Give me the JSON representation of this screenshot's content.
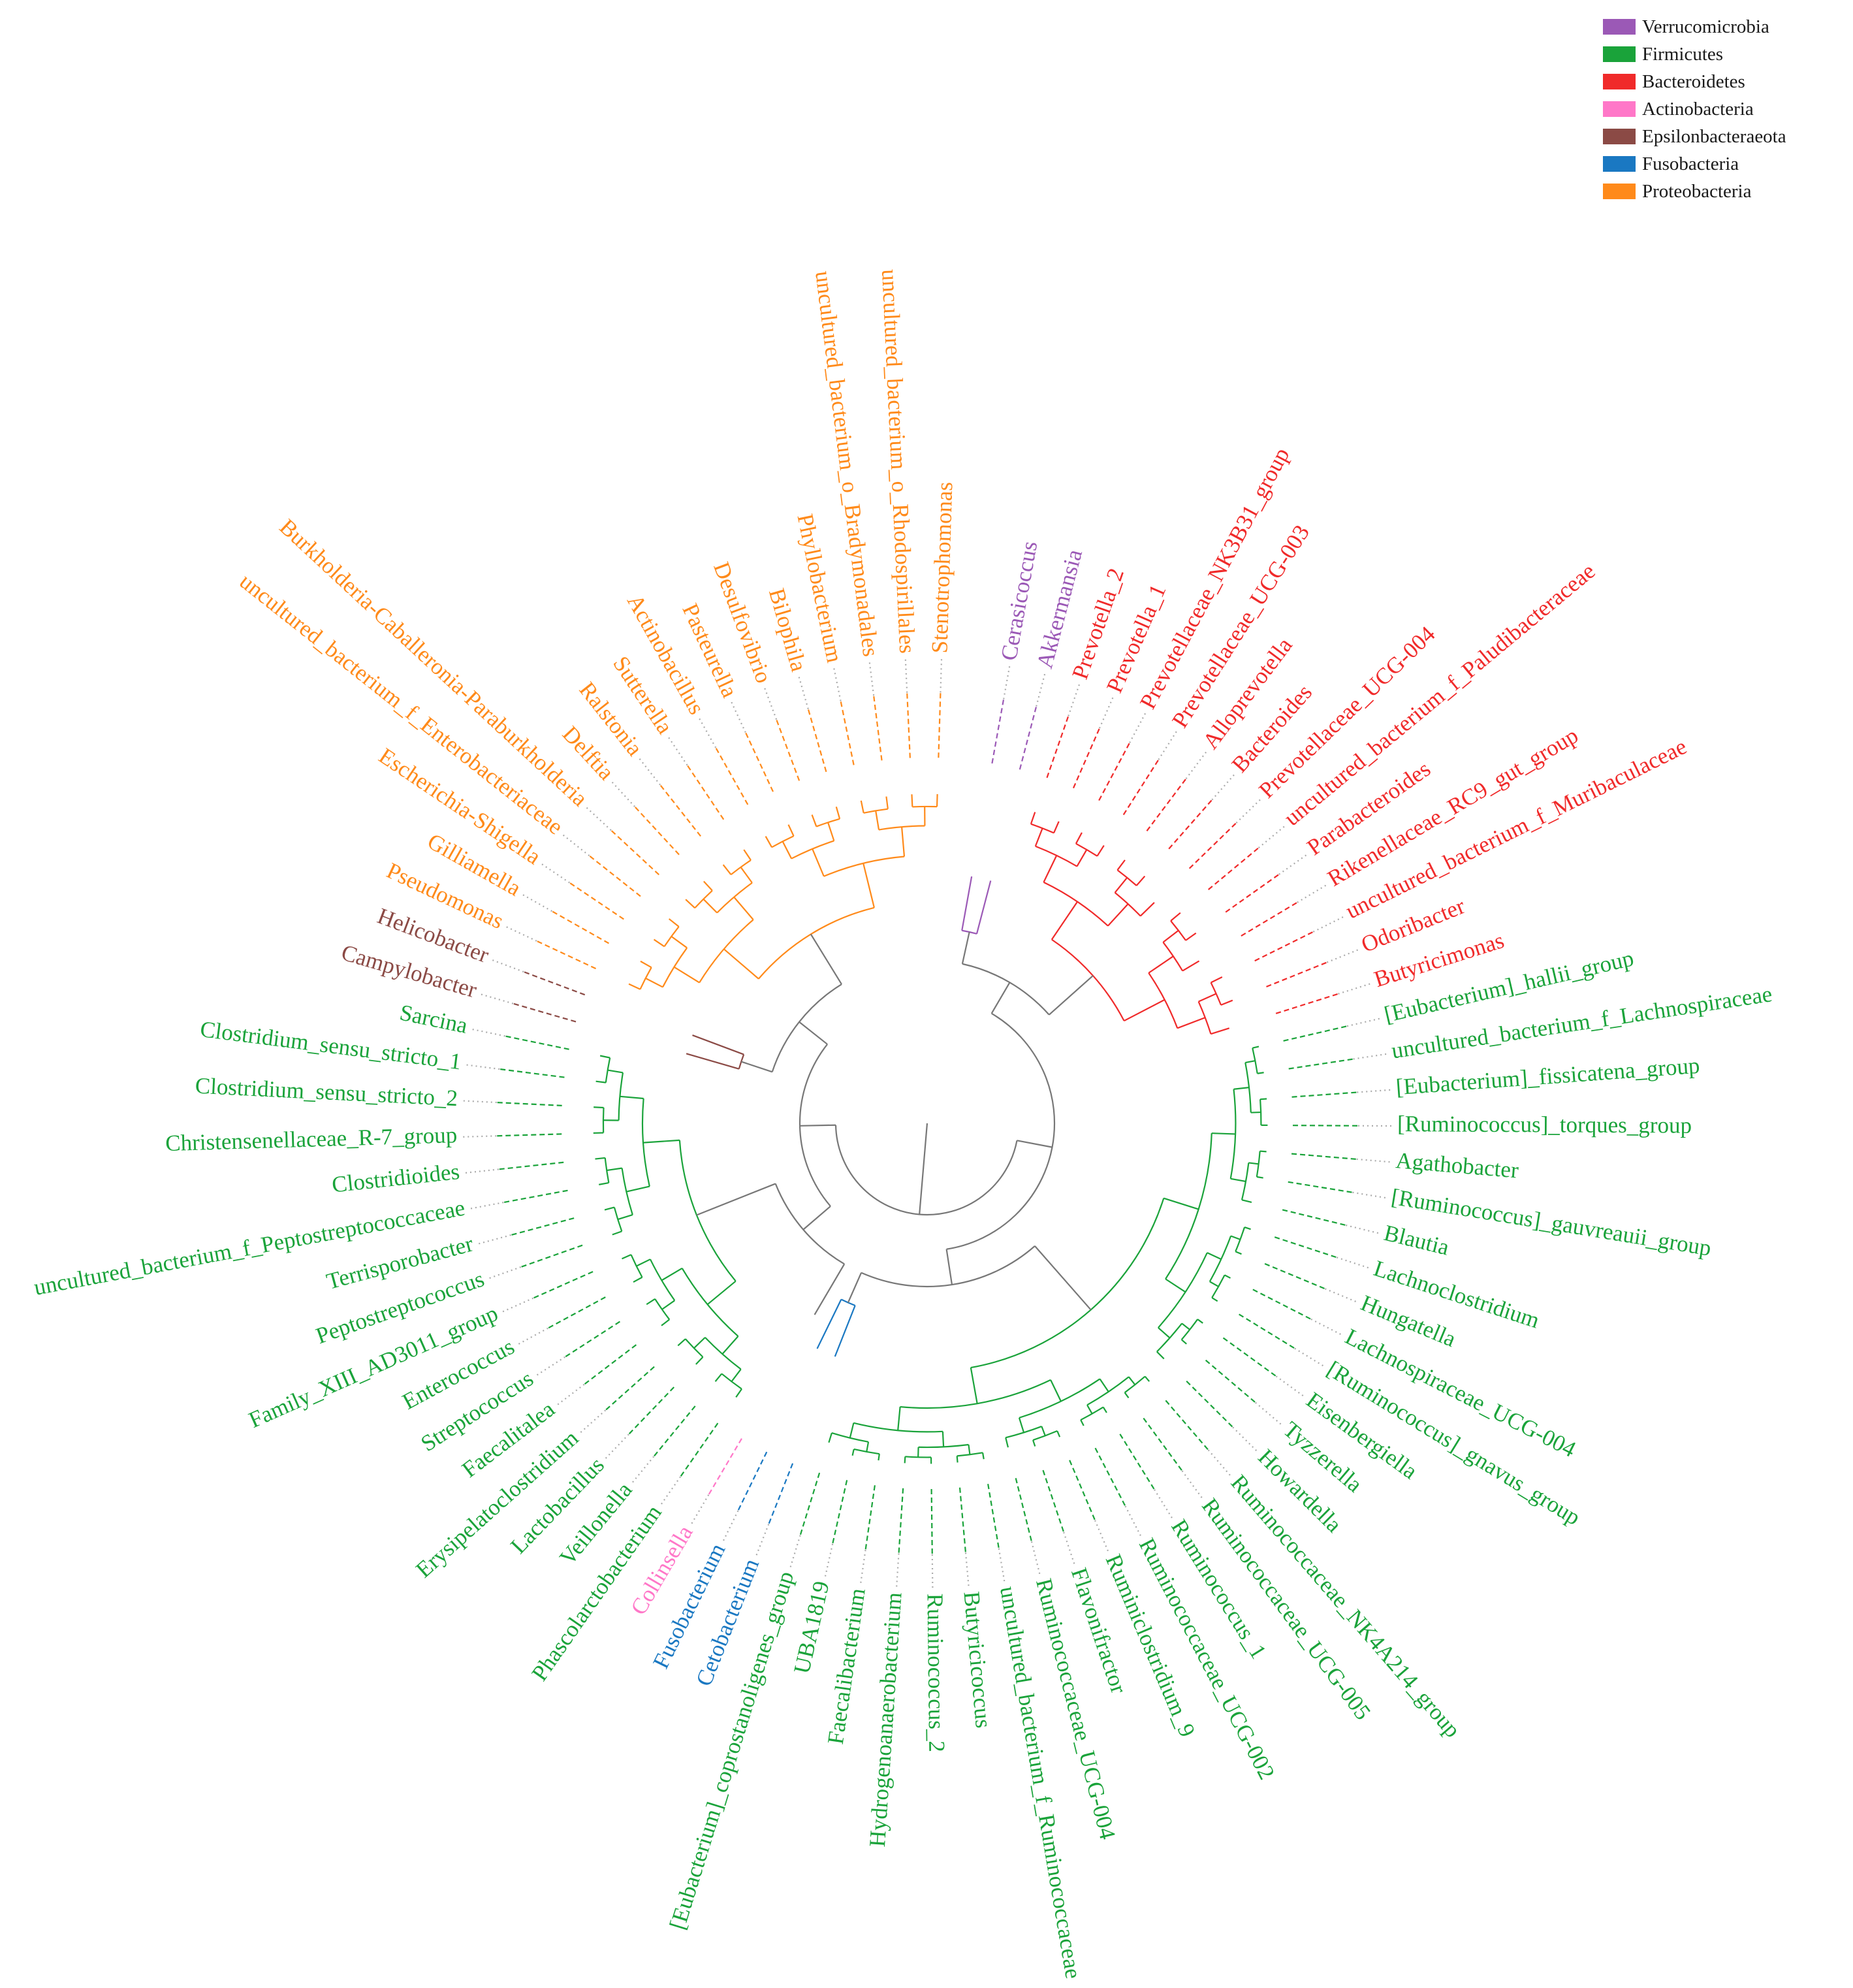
{
  "legend": {
    "items": [
      {
        "label": "Verrucomicrobia",
        "color": "#9b59b6"
      },
      {
        "label": "Firmicutes",
        "color": "#1aa33a"
      },
      {
        "label": "Bacteroidetes",
        "color": "#f02a2a"
      },
      {
        "label": "Actinobacteria",
        "color": "#ff77c8"
      },
      {
        "label": "Epsilonbacteraeota",
        "color": "#8b4a45"
      },
      {
        "label": "Fusobacteria",
        "color": "#1a78c2"
      },
      {
        "label": "Proteobacteria",
        "color": "#ff8a1a"
      }
    ]
  },
  "tree": {
    "center_color": "#888888",
    "leaves": [
      {
        "label": "Cerasicoccus",
        "phylum": "Verrucomicrobia"
      },
      {
        "label": "Akkermansia",
        "phylum": "Verrucomicrobia"
      },
      {
        "label": "Prevotella_2",
        "phylum": "Bacteroidetes"
      },
      {
        "label": "Prevotella_1",
        "phylum": "Bacteroidetes"
      },
      {
        "label": "Prevotellaceae_NK3B31_group",
        "phylum": "Bacteroidetes"
      },
      {
        "label": "Prevotellaceae_UCG-003",
        "phylum": "Bacteroidetes"
      },
      {
        "label": "Alloprevotella",
        "phylum": "Bacteroidetes"
      },
      {
        "label": "Bacteroides",
        "phylum": "Bacteroidetes"
      },
      {
        "label": "Prevotellaceae_UCG-004",
        "phylum": "Bacteroidetes"
      },
      {
        "label": "uncultured_bacterium_f_Paludibacteraceae",
        "phylum": "Bacteroidetes"
      },
      {
        "label": "Parabacteroides",
        "phylum": "Bacteroidetes"
      },
      {
        "label": "Rikenellaceae_RC9_gut_group",
        "phylum": "Bacteroidetes"
      },
      {
        "label": "uncultured_bacterium_f_Muribaculaceae",
        "phylum": "Bacteroidetes"
      },
      {
        "label": "Odoribacter",
        "phylum": "Bacteroidetes"
      },
      {
        "label": "Butyricimonas",
        "phylum": "Bacteroidetes"
      },
      {
        "label": "[Eubacterium]_hallii_group",
        "phylum": "Firmicutes"
      },
      {
        "label": "uncultured_bacterium_f_Lachnospiraceae",
        "phylum": "Firmicutes"
      },
      {
        "label": "[Eubacterium]_fissicatena_group",
        "phylum": "Firmicutes"
      },
      {
        "label": "[Ruminococcus]_torques_group",
        "phylum": "Firmicutes"
      },
      {
        "label": "Agathobacter",
        "phylum": "Firmicutes"
      },
      {
        "label": "[Ruminococcus]_gauvreauii_group",
        "phylum": "Firmicutes"
      },
      {
        "label": "Blautia",
        "phylum": "Firmicutes"
      },
      {
        "label": "Lachnoclostridium",
        "phylum": "Firmicutes"
      },
      {
        "label": "Hungatella",
        "phylum": "Firmicutes"
      },
      {
        "label": "Lachnospiraceae_UCG-004",
        "phylum": "Firmicutes"
      },
      {
        "label": "[Ruminococcus]_gnavus_group",
        "phylum": "Firmicutes"
      },
      {
        "label": "Eisenbergiella",
        "phylum": "Firmicutes"
      },
      {
        "label": "Tyzzerella",
        "phylum": "Firmicutes"
      },
      {
        "label": "Howardella",
        "phylum": "Firmicutes"
      },
      {
        "label": "Ruminococcaceae_NK4A214_group",
        "phylum": "Firmicutes"
      },
      {
        "label": "Ruminococcaceae_UCG-005",
        "phylum": "Firmicutes"
      },
      {
        "label": "Ruminococcus_1",
        "phylum": "Firmicutes"
      },
      {
        "label": "Ruminococcaceae_UCG-002",
        "phylum": "Firmicutes"
      },
      {
        "label": "Ruminiclostridium_9",
        "phylum": "Firmicutes"
      },
      {
        "label": "Flavonifractor",
        "phylum": "Firmicutes"
      },
      {
        "label": "Ruminococcaceae_UCG-004",
        "phylum": "Firmicutes"
      },
      {
        "label": "uncultured_bacterium_f_Ruminococcaceae",
        "phylum": "Firmicutes"
      },
      {
        "label": "Butyricicoccus",
        "phylum": "Firmicutes"
      },
      {
        "label": "Ruminococcus_2",
        "phylum": "Firmicutes"
      },
      {
        "label": "Hydrogenoanaerobacterium",
        "phylum": "Firmicutes"
      },
      {
        "label": "Faecalibacterium",
        "phylum": "Firmicutes"
      },
      {
        "label": "UBA1819",
        "phylum": "Firmicutes"
      },
      {
        "label": "[Eubacterium]_coprostanoligenes_group",
        "phylum": "Firmicutes"
      },
      {
        "label": "Cetobacterium",
        "phylum": "Fusobacteria"
      },
      {
        "label": "Fusobacterium",
        "phylum": "Fusobacteria"
      },
      {
        "label": "Collinsella",
        "phylum": "Actinobacteria"
      },
      {
        "label": "Phascolarctobacterium",
        "phylum": "Firmicutes"
      },
      {
        "label": "Veillonella",
        "phylum": "Firmicutes"
      },
      {
        "label": "Lactobacillus",
        "phylum": "Firmicutes"
      },
      {
        "label": "Erysipelatoclostridium",
        "phylum": "Firmicutes"
      },
      {
        "label": "Faecalitalea",
        "phylum": "Firmicutes"
      },
      {
        "label": "Streptococcus",
        "phylum": "Firmicutes"
      },
      {
        "label": "Enterococcus",
        "phylum": "Firmicutes"
      },
      {
        "label": "Family_XIII_AD3011_group",
        "phylum": "Firmicutes"
      },
      {
        "label": "Peptostreptococcus",
        "phylum": "Firmicutes"
      },
      {
        "label": "Terrisporobacter",
        "phylum": "Firmicutes"
      },
      {
        "label": "uncultured_bacterium_f_Peptostreptococcaceae",
        "phylum": "Firmicutes"
      },
      {
        "label": "Clostridioides",
        "phylum": "Firmicutes"
      },
      {
        "label": "Christensenellaceae_R-7_group",
        "phylum": "Firmicutes"
      },
      {
        "label": "Clostridium_sensu_stricto_2",
        "phylum": "Firmicutes"
      },
      {
        "label": "Clostridium_sensu_stricto_1",
        "phylum": "Firmicutes"
      },
      {
        "label": "Sarcina",
        "phylum": "Firmicutes"
      },
      {
        "label": "Campylobacter",
        "phylum": "Epsilonbacteraeota"
      },
      {
        "label": "Helicobacter",
        "phylum": "Epsilonbacteraeota"
      },
      {
        "label": "Pseudomonas",
        "phylum": "Proteobacteria"
      },
      {
        "label": "Gilliamella",
        "phylum": "Proteobacteria"
      },
      {
        "label": "Escherichia-Shigella",
        "phylum": "Proteobacteria"
      },
      {
        "label": "uncultured_bacterium_f_Enterobacteriaceae",
        "phylum": "Proteobacteria"
      },
      {
        "label": "Burkholderia-Caballeronia-Paraburkholderia",
        "phylum": "Proteobacteria"
      },
      {
        "label": "Delftia",
        "phylum": "Proteobacteria"
      },
      {
        "label": "Ralstonia",
        "phylum": "Proteobacteria"
      },
      {
        "label": "Sutterella",
        "phylum": "Proteobacteria"
      },
      {
        "label": "Actinobacillus",
        "phylum": "Proteobacteria"
      },
      {
        "label": "Pasteurella",
        "phylum": "Proteobacteria"
      },
      {
        "label": "Desulfovibrio",
        "phylum": "Proteobacteria"
      },
      {
        "label": "Bilophila",
        "phylum": "Proteobacteria"
      },
      {
        "label": "Phyllobacterium",
        "phylum": "Proteobacteria"
      },
      {
        "label": "uncultured_bacterium_o_Bradymonadales",
        "phylum": "Proteobacteria"
      },
      {
        "label": "uncultured_bacterium_o_Rhodospirillales",
        "phylum": "Proteobacteria"
      },
      {
        "label": "Stenotrophomonas",
        "phylum": "Proteobacteria"
      }
    ]
  }
}
